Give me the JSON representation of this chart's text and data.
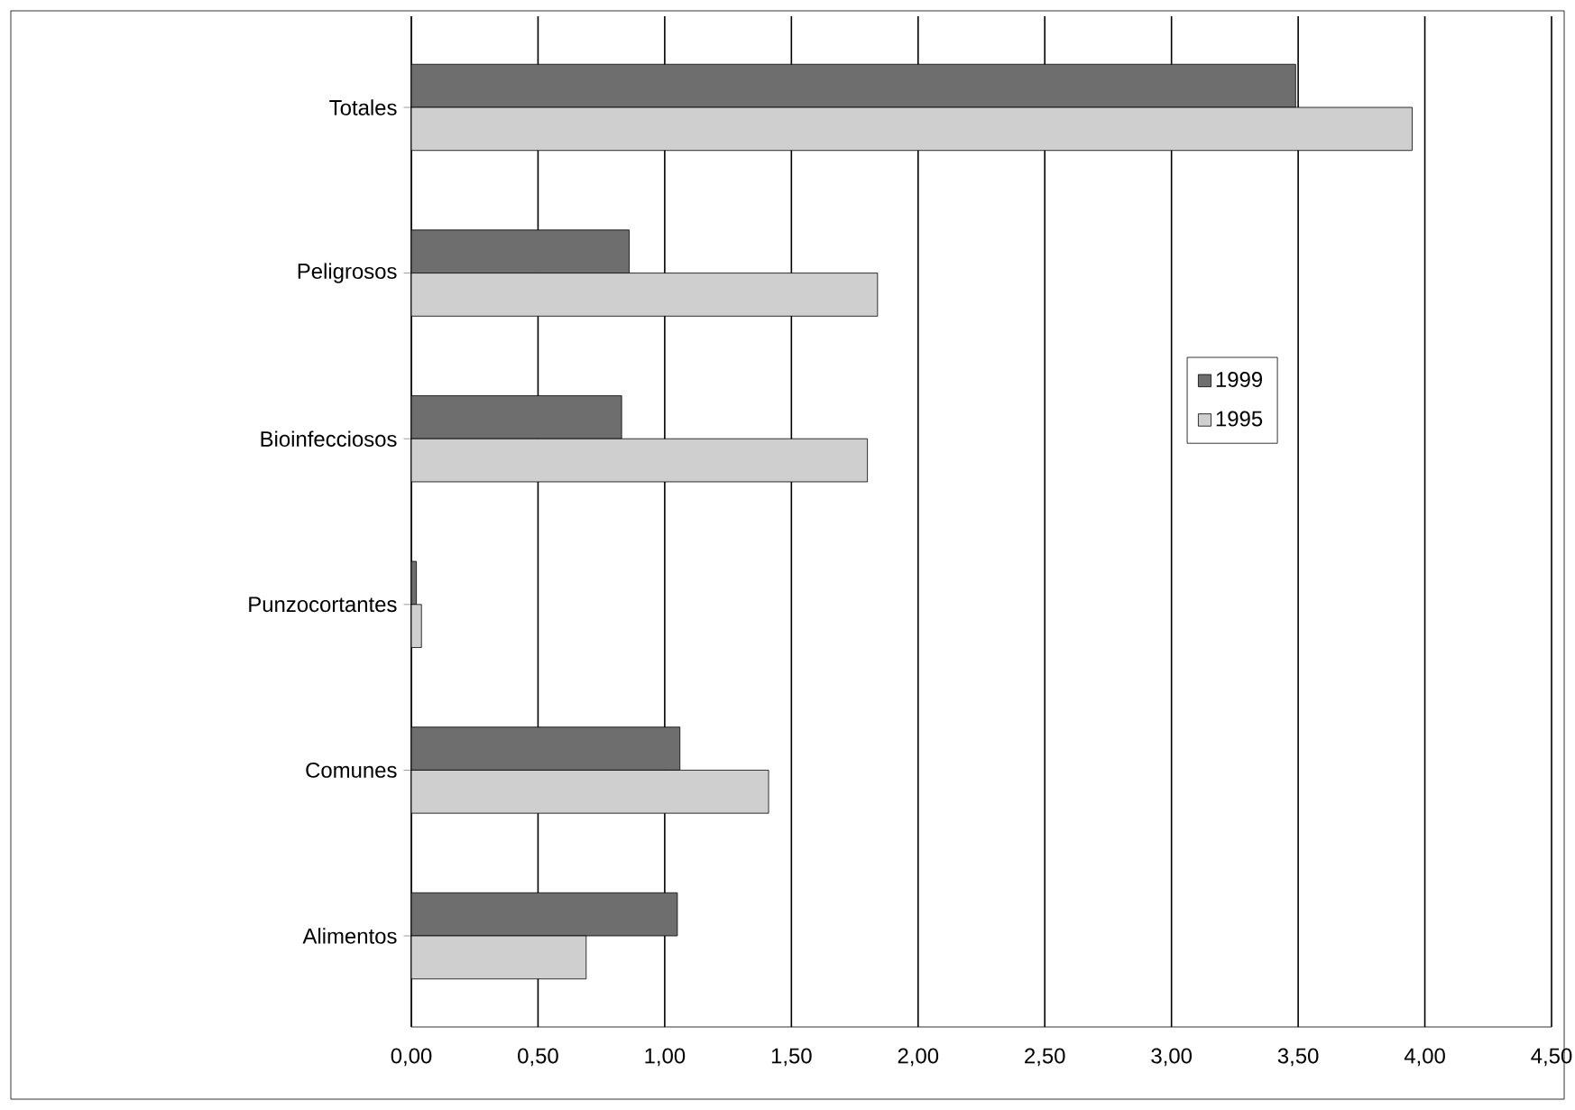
{
  "chart_data": {
    "type": "bar",
    "orientation": "horizontal",
    "categories": [
      "Totales",
      "Peligrosos",
      "Bioinfecciosos",
      "Punzocortantes",
      "Comunes",
      "Alimentos"
    ],
    "series": [
      {
        "name": "1999",
        "color": "#6e6e6e",
        "values": [
          3.49,
          0.86,
          0.83,
          0.02,
          1.06,
          1.05
        ]
      },
      {
        "name": "1995",
        "color": "#cfcfcf",
        "values": [
          3.95,
          1.84,
          1.8,
          0.04,
          1.41,
          0.69
        ]
      }
    ],
    "xlim": [
      0,
      4.5
    ],
    "xticks": [
      {
        "value": 0,
        "label": "0,00"
      },
      {
        "value": 0.5,
        "label": "0,50"
      },
      {
        "value": 1,
        "label": "1,00"
      },
      {
        "value": 1.5,
        "label": "1,50"
      },
      {
        "value": 2,
        "label": "2,00"
      },
      {
        "value": 2.5,
        "label": "2,50"
      },
      {
        "value": 3,
        "label": "3,00"
      },
      {
        "value": 3.5,
        "label": "3,50"
      },
      {
        "value": 4,
        "label": "4,00"
      },
      {
        "value": 4.5,
        "label": "4,50"
      }
    ],
    "grid": "x",
    "legend": "right"
  }
}
